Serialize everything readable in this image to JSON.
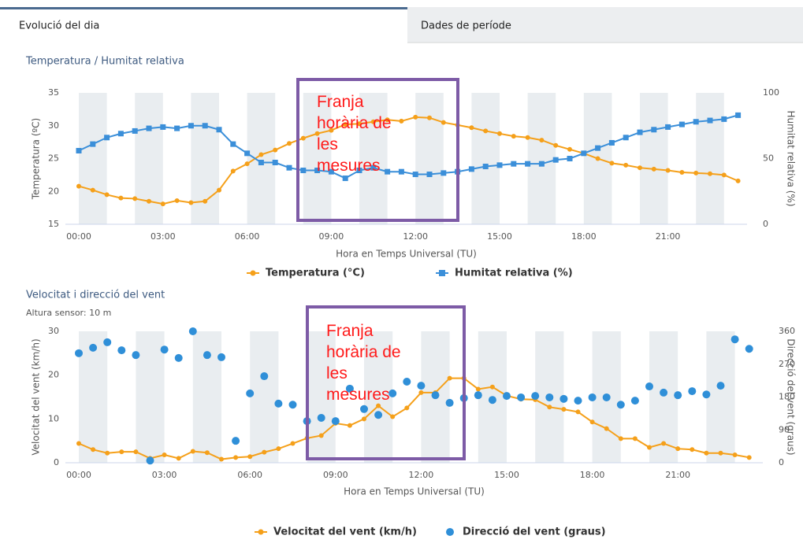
{
  "tabs": [
    "Evolució del dia",
    "Dades de període"
  ],
  "chart_data": [
    {
      "type": "line",
      "title": "Temperatura / Humitat relativa",
      "annotation": "Franja horària de les mesures",
      "x_label": "Hora en Temps Universal (TU)",
      "y_label": "Temperatura (ºC)",
      "y2_label": "Humitat relativa (%)",
      "categories": [
        "00:00",
        null,
        null,
        null,
        null,
        null,
        "03:00",
        null,
        null,
        null,
        null,
        null,
        "06:00",
        null,
        null,
        null,
        null,
        null,
        "09:00",
        null,
        null,
        null,
        null,
        null,
        "12:00",
        null,
        null,
        null,
        null,
        null,
        "15:00",
        null,
        null,
        null,
        null,
        null,
        "18:00",
        null,
        null,
        null,
        null,
        null,
        "21:00",
        null,
        null,
        null,
        null,
        null
      ],
      "ylim": [
        15,
        35
      ],
      "yticks": [
        15,
        20,
        25,
        30,
        35
      ],
      "y2lim": [
        0,
        100
      ],
      "y2ticks": [
        0,
        50,
        100
      ],
      "series": [
        {
          "name": "Temperatura (°C)",
          "color": "#f5a01a",
          "marker": "circle",
          "values": [
            20.8,
            20.2,
            19.5,
            19.0,
            18.9,
            18.5,
            18.1,
            18.6,
            18.3,
            18.5,
            20.2,
            23.1,
            24.2,
            25.6,
            26.3,
            27.3,
            28.1,
            28.8,
            29.3,
            30.2,
            30.3,
            30.6,
            30.9,
            30.7,
            31.3,
            31.2,
            30.5,
            30.1,
            29.7,
            29.2,
            28.8,
            28.4,
            28.2,
            27.8,
            27.0,
            26.4,
            25.8,
            25.0,
            24.3,
            24.0,
            23.6,
            23.4,
            23.2,
            22.9,
            22.8,
            22.7,
            22.5,
            21.6
          ]
        },
        {
          "name": "Humitat relativa (%)",
          "color": "#3b8fd9",
          "marker": "square",
          "axis": "y2",
          "values": [
            56,
            61,
            66,
            69,
            71,
            73,
            74,
            73,
            75,
            75,
            72,
            61,
            54,
            47,
            47,
            43,
            41,
            41,
            40,
            35,
            41,
            43,
            40,
            40,
            38,
            38,
            39,
            40,
            42,
            44,
            45,
            46,
            46,
            46,
            49,
            50,
            54,
            58,
            62,
            66,
            70,
            72,
            74,
            76,
            78,
            79,
            80,
            83
          ]
        }
      ]
    },
    {
      "type": "line",
      "title": "Velocitat i direcció del vent",
      "subtitle": "Altura sensor: 10 m",
      "annotation": "Franja horària de les mesures",
      "x_label": "Hora en Temps Universal (TU)",
      "y_label": "Velocitat del vent (km/h)",
      "y2_label": "Direcció del vent (graus)",
      "categories": [
        "00:00",
        null,
        null,
        null,
        null,
        null,
        "03:00",
        null,
        null,
        null,
        null,
        null,
        "06:00",
        null,
        null,
        null,
        null,
        null,
        "09:00",
        null,
        null,
        null,
        null,
        null,
        "12:00",
        null,
        null,
        null,
        null,
        null,
        "15:00",
        null,
        null,
        null,
        null,
        null,
        "18:00",
        null,
        null,
        null,
        null,
        null,
        "21:00",
        null,
        null,
        null,
        null,
        null
      ],
      "ylim": [
        0,
        30
      ],
      "yticks": [
        0,
        10,
        20,
        30
      ],
      "y2lim": [
        0,
        360
      ],
      "y2ticks": [
        0,
        90,
        180,
        270,
        360
      ],
      "series": [
        {
          "name": "Velocitat del vent (km/h)",
          "color": "#f5a01a",
          "marker": "circle",
          "values": [
            4.4,
            3.0,
            2.2,
            2.5,
            2.5,
            1.0,
            1.8,
            1.0,
            2.6,
            2.3,
            0.8,
            1.2,
            1.4,
            2.4,
            3.2,
            4.4,
            5.6,
            6.2,
            9.0,
            8.5,
            10.0,
            13.0,
            10.5,
            12.5,
            16.0,
            16.0,
            19.3,
            19.3,
            16.8,
            17.3,
            15.3,
            14.5,
            14.4,
            12.7,
            12.2,
            11.6,
            9.3,
            7.8,
            5.5,
            5.5,
            3.5,
            4.4,
            3.2,
            3.0,
            2.2,
            2.2,
            1.8,
            1.2
          ]
        },
        {
          "name": "Direcció del vent (graus)",
          "color": "#2f8fd8",
          "type": "scatter",
          "axis": "y2",
          "values": [
            300,
            315,
            330,
            308,
            295,
            6,
            310,
            287,
            360,
            295,
            289,
            60,
            190,
            237,
            162,
            159,
            114,
            123,
            114,
            203,
            147,
            131,
            190,
            222,
            211,
            185,
            164,
            177,
            185,
            172,
            183,
            179,
            183,
            179,
            175,
            170,
            179,
            179,
            159,
            170,
            209,
            192,
            185,
            196,
            187,
            211,
            338,
            312
          ]
        }
      ]
    }
  ]
}
